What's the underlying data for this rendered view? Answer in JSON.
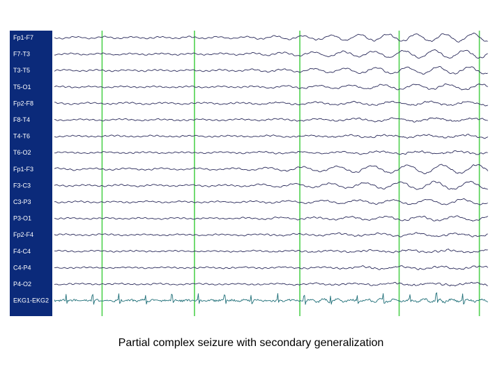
{
  "caption": "Partial complex seizure with secondary generalization",
  "chart_data": {
    "type": "line",
    "channels": [
      "Fp1-F7",
      "F7-T3",
      "T3-T5",
      "T5-O1",
      "Fp2-F8",
      "F8-T4",
      "T4-T6",
      "T6-O2",
      "Fp1-F3",
      "F3-C3",
      "C3-P3",
      "P3-O1",
      "Fp2-F4",
      "F4-C4",
      "C4-P4",
      "P4-O2",
      "EKG1-EKG2"
    ],
    "markers": [
      0.11,
      0.323,
      0.566,
      0.795,
      0.98
    ],
    "traces": [
      {
        "base": 0.25,
        "grow": 0.95,
        "freq": 0.55,
        "noise": 0.5
      },
      {
        "base": 0.2,
        "grow": 1.0,
        "freq": 0.5,
        "noise": 0.5
      },
      {
        "base": 0.18,
        "grow": 0.9,
        "freq": 0.48,
        "noise": 0.5
      },
      {
        "base": 0.15,
        "grow": 0.65,
        "freq": 0.45,
        "noise": 0.5
      },
      {
        "base": 0.22,
        "grow": 0.35,
        "freq": 0.35,
        "noise": 0.6
      },
      {
        "base": 0.18,
        "grow": 0.3,
        "freq": 0.33,
        "noise": 0.6
      },
      {
        "base": 0.15,
        "grow": 0.25,
        "freq": 0.33,
        "noise": 0.6
      },
      {
        "base": 0.15,
        "grow": 0.22,
        "freq": 0.33,
        "noise": 0.6
      },
      {
        "base": 0.25,
        "grow": 1.1,
        "freq": 0.4,
        "noise": 0.5
      },
      {
        "base": 0.2,
        "grow": 0.95,
        "freq": 0.4,
        "noise": 0.5
      },
      {
        "base": 0.15,
        "grow": 0.6,
        "freq": 0.4,
        "noise": 0.5
      },
      {
        "base": 0.15,
        "grow": 0.5,
        "freq": 0.4,
        "noise": 0.5
      },
      {
        "base": 0.15,
        "grow": 0.3,
        "freq": 0.33,
        "noise": 0.6
      },
      {
        "base": 0.12,
        "grow": 0.25,
        "freq": 0.33,
        "noise": 0.6
      },
      {
        "base": 0.12,
        "grow": 0.25,
        "freq": 0.33,
        "noise": 0.6
      },
      {
        "base": 0.12,
        "grow": 0.22,
        "freq": 0.33,
        "noise": 0.6
      },
      {
        "base": 0.1,
        "grow": 0.0,
        "freq": 0.0,
        "noise": 0.3,
        "ekg": true
      }
    ],
    "grid": false,
    "legend": "left"
  }
}
